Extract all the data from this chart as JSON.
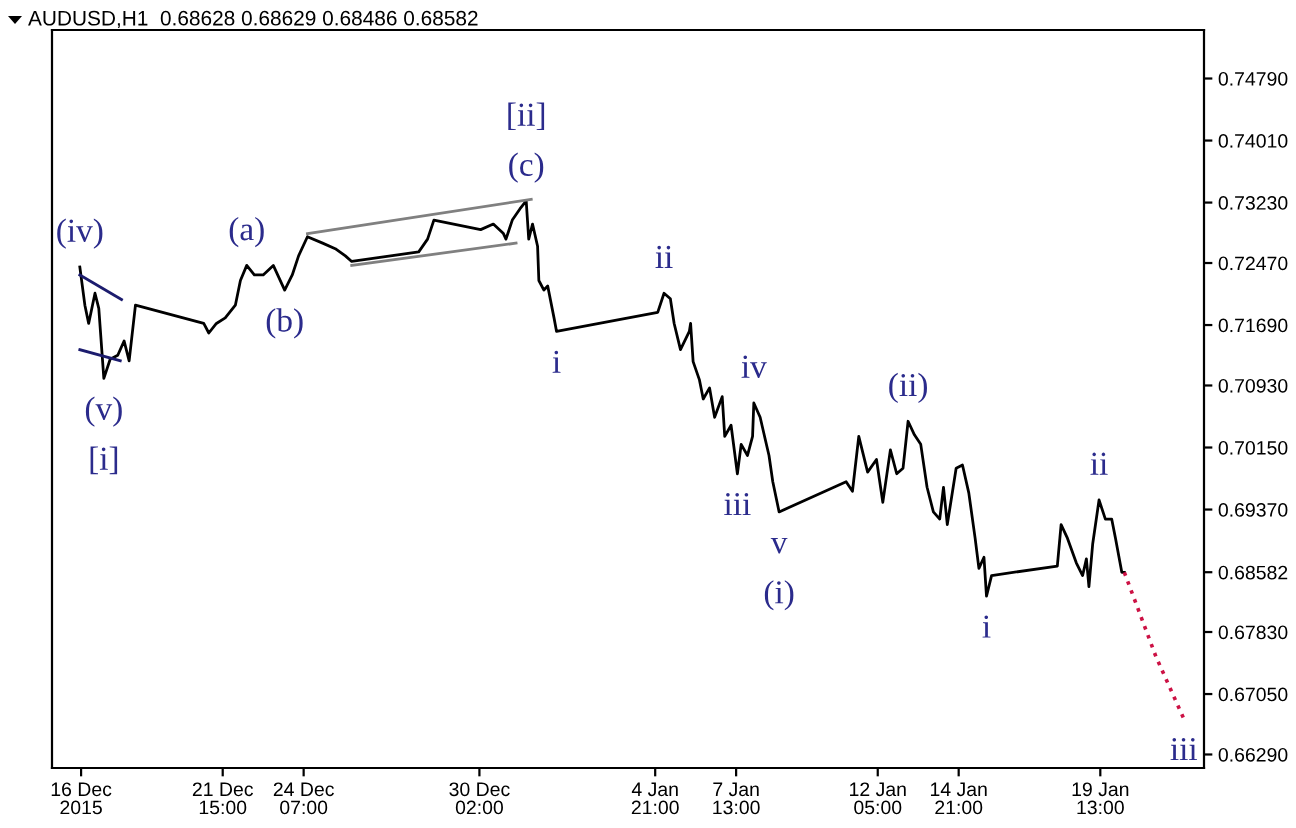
{
  "chart_data": {
    "type": "line",
    "title": "AUDUSD,H1  0.68628 0.68629 0.68486 0.68582",
    "xlim": [
      "2015-12-16T00:00",
      "2016-01-22T23:00"
    ],
    "ylim": [
      0.6612,
      0.754
    ],
    "xticks": [
      {
        "value": "2015-12-16T23:00",
        "label": "16 Dec 2015"
      },
      {
        "value": "2015-12-21T15:00",
        "label": "21 Dec 15:00"
      },
      {
        "value": "2015-12-24T07:00",
        "label": "24 Dec 07:00"
      },
      {
        "value": "2015-12-30T02:00",
        "label": "30 Dec 02:00"
      },
      {
        "value": "2016-01-04T21:00",
        "label": "4 Jan 21:00"
      },
      {
        "value": "2016-01-07T13:00",
        "label": "7 Jan 13:00"
      },
      {
        "value": "2016-01-12T05:00",
        "label": "12 Jan 05:00"
      },
      {
        "value": "2016-01-14T21:00",
        "label": "14 Jan 21:00"
      },
      {
        "value": "2016-01-19T13:00",
        "label": "19 Jan 13:00"
      }
    ],
    "yticks": [
      {
        "value": 0.7479,
        "label": "0.74790"
      },
      {
        "value": 0.7401,
        "label": "0.74010"
      },
      {
        "value": 0.7323,
        "label": "0.73230"
      },
      {
        "value": 0.7247,
        "label": "0.72470"
      },
      {
        "value": 0.7169,
        "label": "0.71690"
      },
      {
        "value": 0.7093,
        "label": "0.70930"
      },
      {
        "value": 0.7015,
        "label": "0.70150"
      },
      {
        "value": 0.6937,
        "label": "0.69370"
      },
      {
        "value": 0.68582,
        "label": "0.68582"
      },
      {
        "value": 0.6783,
        "label": "0.67830"
      },
      {
        "value": 0.6705,
        "label": "0.67050"
      },
      {
        "value": 0.6629,
        "label": "0.66290"
      }
    ],
    "grid": false,
    "legend": false,
    "series": [
      {
        "color": "#000000",
        "x": [
          "2015-12-16T22:00",
          "2015-12-17T02:00",
          "2015-12-17T05:00",
          "2015-12-17T10:00",
          "2015-12-17T13:00",
          "2015-12-17T17:00",
          "2015-12-17T22:00",
          "2015-12-18T04:00",
          "2015-12-18T09:00",
          "2015-12-18T13:00",
          "2015-12-18T18:00",
          "2015-12-21T00:00",
          "2015-12-21T04:00",
          "2015-12-21T10:00",
          "2015-12-21T17:00",
          "2015-12-22T01:00",
          "2015-12-22T05:00",
          "2015-12-22T10:00",
          "2015-12-22T16:00",
          "2015-12-22T23:00",
          "2015-12-23T07:00",
          "2015-12-23T16:00",
          "2015-12-23T22:00",
          "2015-12-24T03:00",
          "2015-12-24T10:00",
          "2015-12-24T22:00",
          "2015-12-25T08:00",
          "2015-12-25T16:00",
          "2015-12-25T21:00",
          "2015-12-28T02:00",
          "2015-12-28T09:00",
          "2015-12-28T14:00",
          "2015-12-30T03:00",
          "2015-12-30T13:00",
          "2015-12-30T21:00",
          "2015-12-30T23:00",
          "2015-12-31T04:00",
          "2015-12-31T10:00",
          "2015-12-31T15:00",
          "2015-12-31T17:00",
          "2015-12-31T20:00",
          "2016-01-01T00:00",
          "2016-01-01T01:00",
          "2016-01-01T05:00",
          "2016-01-01T08:00",
          "2016-01-01T13:00",
          "2016-01-01T15:00",
          "2016-01-04T23:00",
          "2016-01-05T04:00",
          "2016-01-05T09:00",
          "2016-01-05T12:00",
          "2016-01-05T17:00",
          "2016-01-06T00:00",
          "2016-01-06T01:00",
          "2016-01-06T03:00",
          "2016-01-06T08:00",
          "2016-01-06T11:00",
          "2016-01-06T16:00",
          "2016-01-06T20:00",
          "2016-01-07T02:00",
          "2016-01-07T04:00",
          "2016-01-07T09:00",
          "2016-01-07T14:00",
          "2016-01-07T17:00",
          "2016-01-07T22:00",
          "2016-01-08T02:00",
          "2016-01-08T03:00",
          "2016-01-08T08:00",
          "2016-01-08T15:00",
          "2016-01-08T18:00",
          "2016-01-08T23:00",
          "2016-01-11T04:00",
          "2016-01-11T09:00",
          "2016-01-11T14:00",
          "2016-01-11T21:00",
          "2016-01-12T04:00",
          "2016-01-12T09:00",
          "2016-01-12T15:00",
          "2016-01-12T20:00",
          "2016-01-13T01:00",
          "2016-01-13T05:00",
          "2016-01-13T10:00",
          "2016-01-13T15:00",
          "2016-01-13T20:00",
          "2016-01-14T01:00",
          "2016-01-14T06:00",
          "2016-01-14T09:00",
          "2016-01-14T12:00",
          "2016-01-14T19:00",
          "2016-01-15T00:00",
          "2016-01-15T05:00",
          "2016-01-15T10:00",
          "2016-01-15T13:00",
          "2016-01-15T17:00",
          "2016-01-15T19:00",
          "2016-01-15T23:00",
          "2016-01-18T03:00",
          "2016-01-18T06:00",
          "2016-01-18T11:00",
          "2016-01-18T18:00",
          "2016-01-18T23:00",
          "2016-01-19T02:00",
          "2016-01-19T04:00",
          "2016-01-19T07:00",
          "2016-01-19T12:00",
          "2016-01-19T17:00",
          "2016-01-19T22:00",
          "2016-01-20T01:00",
          "2016-01-20T06:00",
          "2016-01-20T08:00"
        ],
        "values": [
          0.7242,
          0.7194,
          0.7171,
          0.7209,
          0.719,
          0.7102,
          0.7126,
          0.7131,
          0.7149,
          0.7124,
          0.7194,
          0.7171,
          0.7159,
          0.7171,
          0.7178,
          0.7194,
          0.7225,
          0.7244,
          0.7232,
          0.7232,
          0.7244,
          0.7213,
          0.7232,
          0.7256,
          0.728,
          0.7272,
          0.7265,
          0.7256,
          0.7249,
          0.7261,
          0.7277,
          0.7301,
          0.7289,
          0.7296,
          0.7284,
          0.7277,
          0.7301,
          0.7315,
          0.7325,
          0.7277,
          0.7296,
          0.7268,
          0.7225,
          0.7213,
          0.7218,
          0.7178,
          0.7161,
          0.7185,
          0.7209,
          0.7202,
          0.7171,
          0.7138,
          0.7161,
          0.7171,
          0.7123,
          0.71,
          0.7076,
          0.709,
          0.7053,
          0.7079,
          0.7029,
          0.7043,
          0.6982,
          0.7019,
          0.7005,
          0.7029,
          0.7071,
          0.7053,
          0.7005,
          0.6972,
          0.6934,
          0.6972,
          0.696,
          0.7029,
          0.6984,
          0.7,
          0.6946,
          0.7012,
          0.6982,
          0.6989,
          0.7048,
          0.7031,
          0.7019,
          0.6965,
          0.6934,
          0.6925,
          0.6965,
          0.6918,
          0.6989,
          0.6993,
          0.6958,
          0.6901,
          0.6863,
          0.6877,
          0.6828,
          0.6854,
          0.6866,
          0.6918,
          0.6901,
          0.687,
          0.6854,
          0.6875,
          0.684,
          0.6894,
          0.6949,
          0.6925,
          0.6925,
          0.6901,
          0.6858,
          0.6858
        ]
      },
      {
        "color": "#cc1144",
        "line_style": "dotted",
        "x": [
          "2016-01-20T08:00",
          "2016-01-21T09:00",
          "2016-01-22T07:00"
        ],
        "values": [
          0.6858,
          0.6752,
          0.6674
        ]
      },
      {
        "color": "#808080",
        "x": [
          "2015-12-24T10:00",
          "2015-12-31T19:00"
        ],
        "values": [
          0.7284,
          0.7327
        ]
      },
      {
        "color": "#808080",
        "x": [
          "2015-12-25T21:00",
          "2015-12-31T07:00"
        ],
        "values": [
          0.7244,
          0.7272
        ]
      },
      {
        "color": "#1c1c6e",
        "x": [
          "2015-12-16T22:00",
          "2015-12-18T07:00"
        ],
        "values": [
          0.7232,
          0.7201
        ]
      },
      {
        "color": "#1c1c6e",
        "x": [
          "2015-12-16T22:00",
          "2015-12-18T06:00"
        ],
        "values": [
          0.7138,
          0.7124
        ]
      }
    ],
    "annotations": [
      {
        "text": "(iv)",
        "x": "2015-12-16T22:00",
        "y": 0.7242
      },
      {
        "text": "(v)",
        "x": "2015-12-17T17:00",
        "y": 0.7102
      },
      {
        "text": "[i]",
        "x": "2015-12-17T17:00",
        "y": 0.7102
      },
      {
        "text": "(a)",
        "x": "2015-12-22T10:00",
        "y": 0.7244
      },
      {
        "text": "(b)",
        "x": "2015-12-23T16:00",
        "y": 0.7213
      },
      {
        "text": "(c)",
        "x": "2015-12-31T15:00",
        "y": 0.7325
      },
      {
        "text": "[ii]",
        "x": "2015-12-31T15:00",
        "y": 0.7325
      },
      {
        "text": "i",
        "x": "2016-01-01T15:00",
        "y": 0.7161
      },
      {
        "text": "ii",
        "x": "2016-01-05T04:00",
        "y": 0.7209
      },
      {
        "text": "iii",
        "x": "2016-01-07T14:00",
        "y": 0.6982
      },
      {
        "text": "iv",
        "x": "2016-01-08T03:00",
        "y": 0.7071
      },
      {
        "text": "v",
        "x": "2016-01-08T23:00",
        "y": 0.6934
      },
      {
        "text": "(i)",
        "x": "2016-01-08T23:00",
        "y": 0.6934
      },
      {
        "text": "(ii)",
        "x": "2016-01-13T05:00",
        "y": 0.7048
      },
      {
        "text": "i",
        "x": "2016-01-15T19:00",
        "y": 0.6828
      },
      {
        "text": "ii",
        "x": "2016-01-19T12:00",
        "y": 0.6949
      },
      {
        "text": "iii",
        "x": "2016-01-22T07:00",
        "y": 0.6674
      }
    ]
  }
}
